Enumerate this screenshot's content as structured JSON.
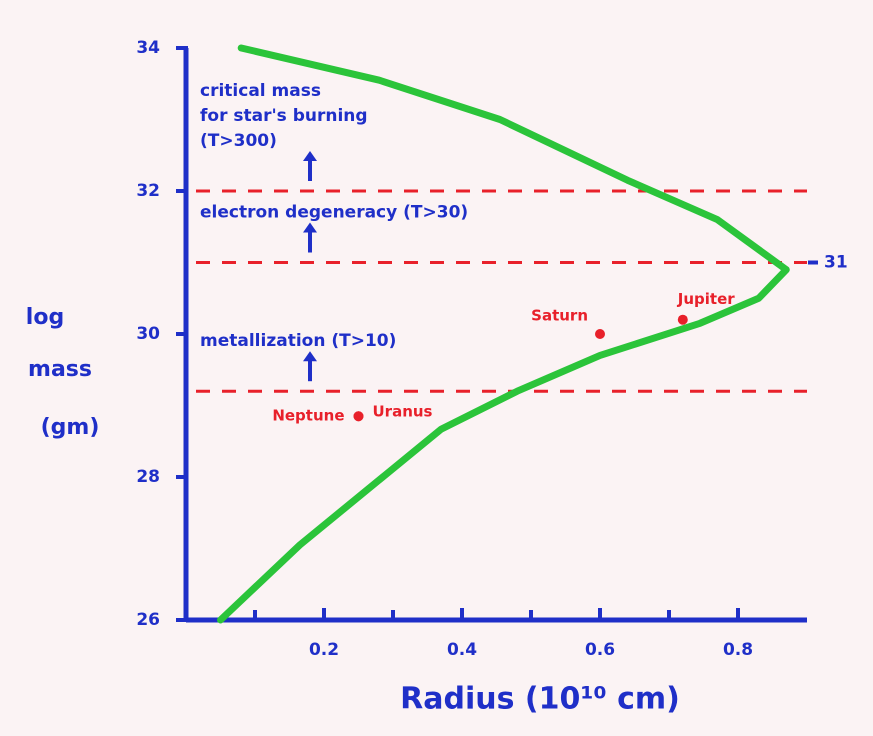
{
  "chart_data": {
    "type": "line",
    "x_label": "Radius (10¹⁰ cm)",
    "y_label": [
      "log",
      "mass",
      "(gm)"
    ],
    "xlim": [
      0,
      0.9
    ],
    "xticks": [
      0.2,
      0.4,
      0.6,
      0.8
    ],
    "xminor": [
      0.1,
      0.3,
      0.5,
      0.7
    ],
    "ylim": [
      26,
      34
    ],
    "yticks": [
      26,
      28,
      30,
      32,
      34
    ],
    "right_ticks": [
      31
    ],
    "axis_color": "#1f2fc8",
    "series": [
      {
        "color": "#2bc43a",
        "x": [
          0.05,
          0.165,
          0.37,
          0.48,
          0.6,
          0.745,
          0.83,
          0.87,
          0.77,
          0.64,
          0.455,
          0.28,
          0.08
        ],
        "values": [
          26,
          27.05,
          28.67,
          29.2,
          29.7,
          30.15,
          30.5,
          30.9,
          31.6,
          32.15,
          33.0,
          33.55,
          34.0
        ]
      }
    ],
    "threshold_color": "#e8202a",
    "thresholds": [
      {
        "value": 32,
        "label": [
          "critical mass",
          "for star's burning",
          "(T>300)"
        ]
      },
      {
        "value": 31,
        "label": [
          "electron degeneracy (T>30)"
        ]
      },
      {
        "value": 29.2,
        "label": [
          "metallization (T>10)"
        ]
      }
    ],
    "points_color": "#e8202a",
    "points": [
      {
        "name": "Saturn",
        "x": 0.6,
        "y": 30.0
      },
      {
        "name": "Jupiter",
        "x": 0.72,
        "y": 30.2
      },
      {
        "name": "Neptune",
        "x": 0.25,
        "y": 28.85
      },
      {
        "name": "Uranus",
        "x": 0.25,
        "y": 28.85
      }
    ]
  }
}
